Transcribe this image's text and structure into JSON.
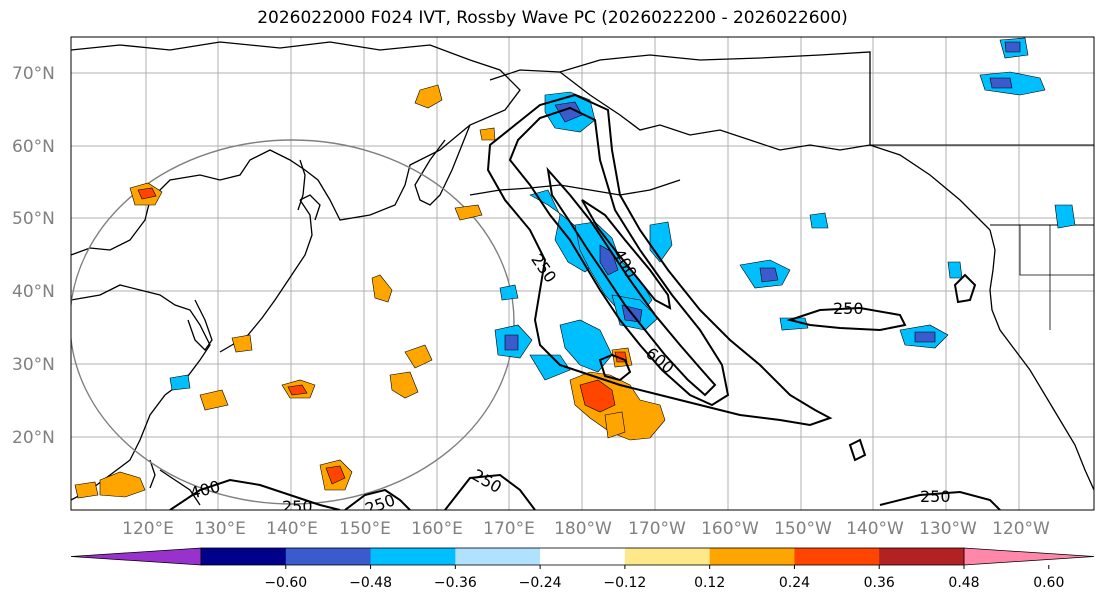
{
  "title": "2026022000 F024 IVT, Rossby Wave PC (2026022200 - 2026022600)",
  "map": {
    "lat_labels": [
      "70°N",
      "60°N",
      "50°N",
      "40°N",
      "30°N",
      "20°N"
    ],
    "lon_labels": [
      "120°E",
      "130°E",
      "140°E",
      "150°E",
      "160°E",
      "170°E",
      "180°W",
      "170°W",
      "160°W",
      "150°W",
      "140°W",
      "130°W",
      "120°W"
    ],
    "contour_labels": [
      "250",
      "400",
      "600",
      "250",
      "250",
      "400",
      "250",
      "250",
      "250"
    ]
  },
  "colorbar": {
    "ticks": [
      "−0.60",
      "−0.48",
      "−0.36",
      "−0.24",
      "−0.12",
      "0.12",
      "0.24",
      "0.36",
      "0.48",
      "0.60"
    ],
    "colors": [
      "#9932cc",
      "#00008b",
      "#3a5bcc",
      "#00bfff",
      "#b0e2ff",
      "#ffffff",
      "#ffe88a",
      "#ffa500",
      "#ff4500",
      "#b22222",
      "#ff88aa"
    ]
  }
}
